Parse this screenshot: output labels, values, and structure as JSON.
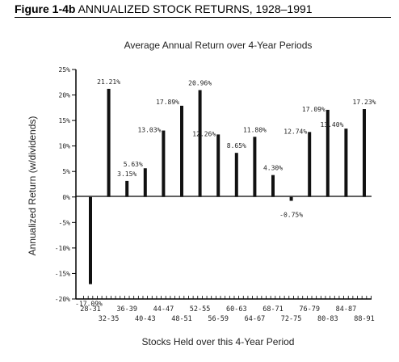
{
  "figure": {
    "label": "Figure 1-4b",
    "title": "ANNUALIZED STOCK RETURNS, 1928–1991"
  },
  "chart_data": {
    "type": "bar",
    "title": "Average Annual Return over 4-Year Periods",
    "xlabel": "Stocks Held over this 4-Year Period",
    "ylabel": "Annualized Return (w/dividends)",
    "ylim": [
      -20,
      25
    ],
    "yticks": [
      "25%",
      "20%",
      "15%",
      "10%",
      "5%",
      "0%",
      "-5%",
      "-10%",
      "-15%",
      "-20%"
    ],
    "categories": [
      "28-31",
      "32-35",
      "36-39",
      "40-43",
      "44-47",
      "48-51",
      "52-55",
      "56-59",
      "60-63",
      "64-67",
      "68-71",
      "72-75",
      "76-79",
      "80-83",
      "84-87",
      "88-91"
    ],
    "values": [
      -17.09,
      21.21,
      3.15,
      5.63,
      13.03,
      17.89,
      20.96,
      12.26,
      8.65,
      11.8,
      4.3,
      -0.75,
      12.74,
      17.09,
      13.4,
      17.23
    ],
    "value_labels": [
      "-17.09%",
      "21.21%",
      "3.15%",
      "5.63%",
      "13.03%",
      "17.89%",
      "20.96%",
      "12.26%",
      "8.65%",
      "11.80%",
      "4.30%",
      "-0.75%",
      "12.74%",
      "17.09%",
      "13.40%",
      "17.23%"
    ],
    "bar_color": "#111111"
  }
}
